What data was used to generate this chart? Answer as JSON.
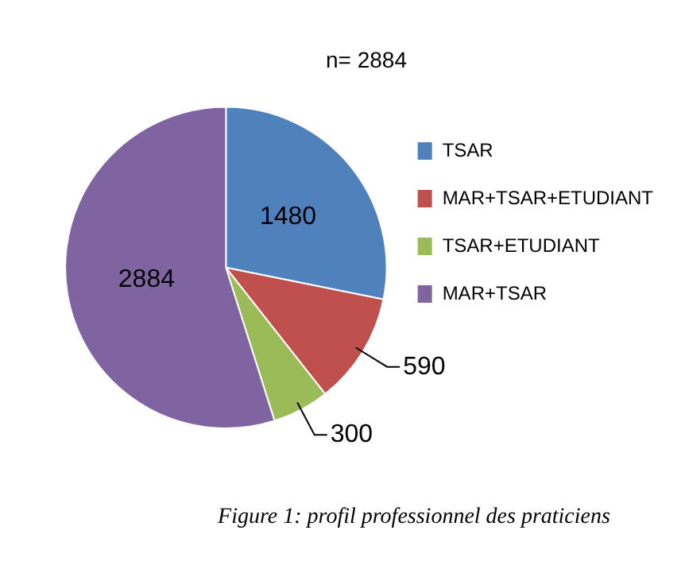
{
  "chart_data": {
    "type": "pie",
    "title": "n= 2884",
    "categories": [
      "TSAR",
      "MAR+TSAR+ETUDIANT",
      "TSAR+ETUDIANT",
      "MAR+TSAR"
    ],
    "values": [
      1480,
      590,
      300,
      2884
    ],
    "colors": [
      "#4f81bd",
      "#c0504d",
      "#9bbb59",
      "#8064a2"
    ],
    "data_labels": true,
    "legend": "right",
    "annotations": [
      "Figure 1: profil professionnel des praticiens"
    ]
  }
}
